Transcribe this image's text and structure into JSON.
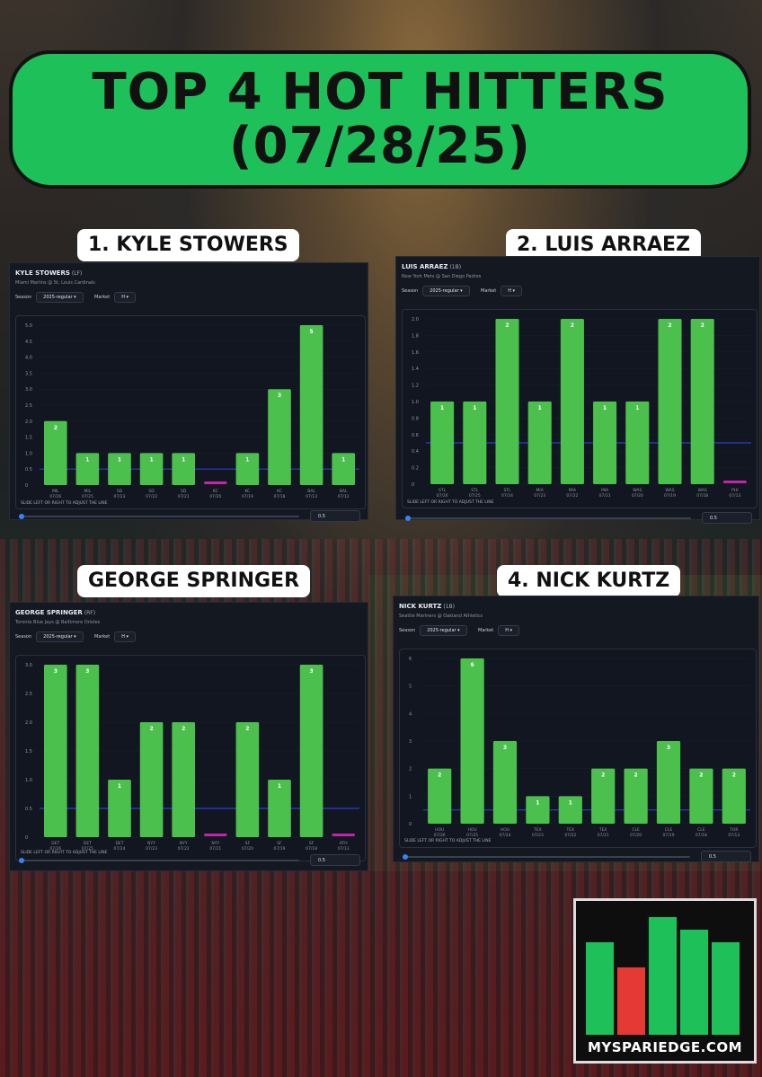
{
  "banner": {
    "line1": "TOP 4 HOT HITTERS",
    "line2": "(07/28/25)"
  },
  "common": {
    "season_label": "Season",
    "season_value": "2025-regular",
    "market_label": "Market",
    "market_value": "H",
    "slider_hint": "SLIDE LEFT OR RIGHT TO ADJUST THE LINE",
    "line_value": "0.5"
  },
  "players": [
    {
      "rank_label": "1. KYLE STOWERS",
      "name": "KYLE STOWERS",
      "pos": "(LF)",
      "matchup": "Miami Marlins @ St. Louis Cardinals"
    },
    {
      "rank_label": "2. LUIS ARRAEZ",
      "name": "LUIS ARRAEZ",
      "pos": "(1B)",
      "matchup": "New York Mets @ San Diego Padres"
    },
    {
      "rank_label": "GEORGE SPRINGER",
      "name": "GEORGE SPRINGER",
      "pos": "(RF)",
      "matchup": "Toronto Blue Jays @ Baltimore Orioles"
    },
    {
      "rank_label": "4. NICK KURTZ",
      "name": "NICK KURTZ",
      "pos": "(1B)",
      "matchup": "Seattle Mariners @ Oakland Athletics"
    }
  ],
  "chart_data": [
    {
      "type": "bar",
      "title": "KYLE STOWERS (LF)",
      "line": 0.5,
      "ylim": [
        0,
        5
      ],
      "yticks": [
        "0",
        "0.5",
        "1.0",
        "1.5",
        "2.0",
        "2.5",
        "3.0",
        "3.5",
        "4.0",
        "4.5",
        "5.0"
      ],
      "categories": [
        [
          "MIL",
          "07/26"
        ],
        [
          "MIL",
          "07/25"
        ],
        [
          "SD",
          "07/23"
        ],
        [
          "SD",
          "07/22"
        ],
        [
          "SD",
          "07/21"
        ],
        [
          "KC",
          "07/20"
        ],
        [
          "KC",
          "07/19"
        ],
        [
          "KC",
          "07/18"
        ],
        [
          "BAL",
          "07/13"
        ],
        [
          "BAL",
          "07/12"
        ]
      ],
      "values": [
        2,
        1,
        1,
        1,
        1,
        0,
        1,
        3,
        5,
        1
      ]
    },
    {
      "type": "bar",
      "title": "LUIS ARRAEZ (1B)",
      "line": 0.5,
      "ylim": [
        0,
        2
      ],
      "yticks": [
        "0",
        "0.2",
        "0.4",
        "0.6",
        "0.8",
        "1.0",
        "1.2",
        "1.4",
        "1.6",
        "1.8",
        "2.0"
      ],
      "categories": [
        [
          "STL",
          "07/26"
        ],
        [
          "STL",
          "07/25"
        ],
        [
          "STL",
          "07/24"
        ],
        [
          "MIA",
          "07/23"
        ],
        [
          "MIA",
          "07/22"
        ],
        [
          "MIA",
          "07/21"
        ],
        [
          "WAS",
          "07/20"
        ],
        [
          "WAS",
          "07/19"
        ],
        [
          "WAS",
          "07/18"
        ],
        [
          "PHI",
          "07/13"
        ]
      ],
      "values": [
        1,
        1,
        2,
        1,
        2,
        1,
        1,
        2,
        2,
        0
      ]
    },
    {
      "type": "bar",
      "title": "GEORGE SPRINGER (RF)",
      "line": 0.5,
      "ylim": [
        0,
        3
      ],
      "yticks": [
        "0",
        "0.5",
        "1.0",
        "1.5",
        "2.0",
        "2.5",
        "3.0"
      ],
      "categories": [
        [
          "DET",
          "07/26"
        ],
        [
          "DET",
          "07/25"
        ],
        [
          "DET",
          "07/24"
        ],
        [
          "NYY",
          "07/23"
        ],
        [
          "NYY",
          "07/22"
        ],
        [
          "NYY",
          "07/21"
        ],
        [
          "SF",
          "07/20"
        ],
        [
          "SF",
          "07/19"
        ],
        [
          "SF",
          "07/18"
        ],
        [
          "ATH",
          "07/13"
        ]
      ],
      "values": [
        3,
        3,
        1,
        2,
        2,
        0,
        2,
        1,
        3,
        0
      ]
    },
    {
      "type": "bar",
      "title": "NICK KURTZ (1B)",
      "line": 0.5,
      "ylim": [
        0,
        6
      ],
      "yticks": [
        "0",
        "1",
        "2",
        "3",
        "4",
        "5",
        "6"
      ],
      "categories": [
        [
          "HOU",
          "07/26"
        ],
        [
          "HOU",
          "07/25"
        ],
        [
          "HOU",
          "07/24"
        ],
        [
          "TEX",
          "07/23"
        ],
        [
          "TEX",
          "07/22"
        ],
        [
          "TEX",
          "07/21"
        ],
        [
          "CLE",
          "07/20"
        ],
        [
          "CLE",
          "07/19"
        ],
        [
          "CLE",
          "07/18"
        ],
        [
          "TOR",
          "07/13"
        ]
      ],
      "values": [
        2,
        6,
        3,
        1,
        1,
        2,
        2,
        3,
        2,
        2
      ]
    }
  ],
  "colors": {
    "bar": "#4cc04c",
    "zero_bar": "#c026a8",
    "line": "#2a3fd4",
    "banner": "#1ec05a"
  },
  "logo": {
    "text": "MYSPARIEDGE.COM",
    "bars": [
      {
        "value": 0.75,
        "color": "#1ec05a"
      },
      {
        "value": 0.55,
        "color": "#e53935"
      },
      {
        "value": 0.95,
        "color": "#1ec05a"
      },
      {
        "value": 0.85,
        "color": "#1ec05a"
      },
      {
        "value": 0.75,
        "color": "#1ec05a"
      }
    ]
  }
}
